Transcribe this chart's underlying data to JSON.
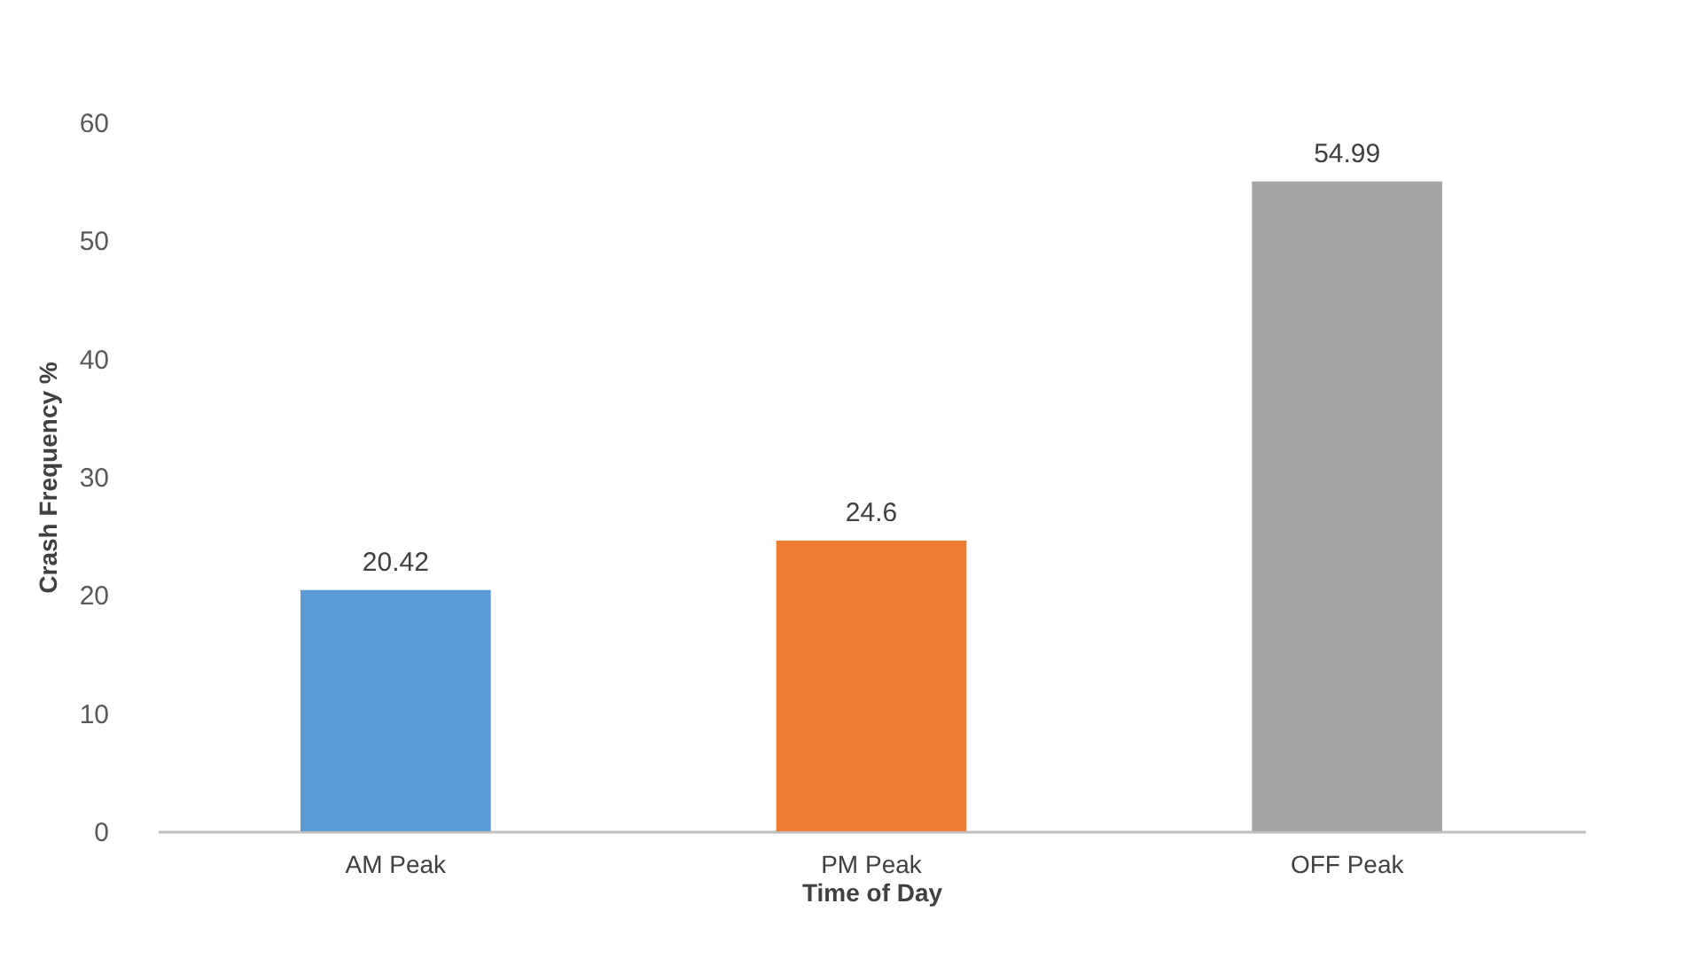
{
  "chart_data": {
    "type": "bar",
    "categories": [
      "AM Peak",
      "PM Peak",
      "OFF Peak"
    ],
    "values": [
      20.42,
      24.6,
      54.99
    ],
    "colors": [
      "#5b9bd5",
      "#ed7d31",
      "#a5a5a5"
    ],
    "xlabel": "Time of Day",
    "ylabel": "Crash Frequency %",
    "ylim": [
      0,
      60
    ],
    "yticks": [
      0,
      10,
      20,
      30,
      40,
      50,
      60
    ],
    "grid": false,
    "legend": false,
    "data_labels": true
  }
}
